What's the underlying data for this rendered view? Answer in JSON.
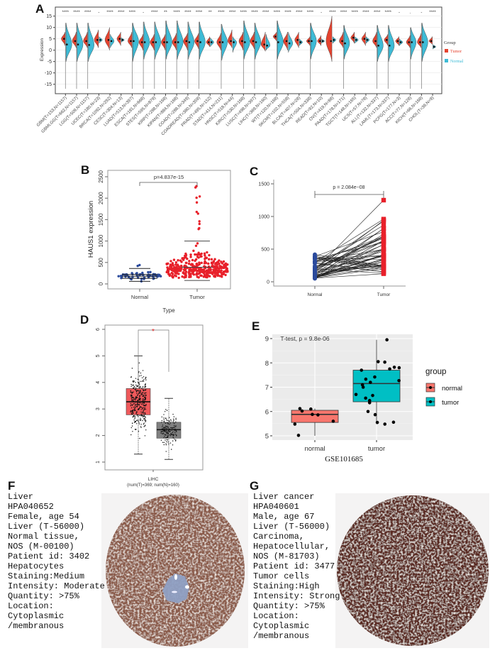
{
  "panel_letters": [
    "A",
    "B",
    "C",
    "D",
    "E",
    "F",
    "G"
  ],
  "chart_data": [
    {
      "panel": "A",
      "type": "violin",
      "ylabel": "Expression",
      "ylim": [
        -17,
        17
      ],
      "yticks": [
        15,
        10,
        5,
        0,
        -5,
        -10,
        -15
      ],
      "grid": true,
      "legend": {
        "title": "Group",
        "placement": "right",
        "entries": [
          {
            "name": "Tumor",
            "color": "#e5432f"
          },
          {
            "name": "Normal",
            "color": "#3dbbd6"
          }
        ]
      },
      "fields": [
        "label",
        "significance",
        "tumor_median",
        "tumor_min",
        "tumor_max",
        "normal_median",
        "normal_min",
        "normal_max"
      ],
      "categories": [
        [
          "GBM(T=153,N=1157)",
          "****",
          5,
          2,
          8,
          2.5,
          -5,
          12
        ],
        [
          "GBMLGG(T=662,N=1157)",
          "****",
          4,
          1,
          8,
          2.5,
          -5,
          12
        ],
        [
          "LGG(T=509,N=1157)",
          "****",
          4,
          1,
          8,
          2.3,
          -5,
          12
        ],
        [
          "UCEC(T=180,N=23)",
          "-",
          4.5,
          1,
          9,
          4.5,
          3,
          6
        ],
        [
          "BRCA(T=1092,N=292)",
          "****",
          4.5,
          0,
          10,
          4,
          1,
          7
        ],
        [
          "CESC(T=304,N=13)",
          "****",
          5,
          2,
          8,
          4.5,
          3.5,
          5.5
        ],
        [
          "LUAD(T=513,N=397)",
          "****",
          4,
          1,
          8,
          4,
          -5,
          12
        ],
        [
          "ESCA(T=181,N=668)",
          "-",
          3.5,
          0,
          7,
          3.5,
          -4,
          12.5
        ],
        [
          "STES(T=595,N=879)",
          "****",
          3.5,
          0,
          7,
          3.5,
          -4,
          12.5
        ],
        [
          "KIRP(T=288,N=168)",
          "**",
          3.5,
          0,
          7,
          3.5,
          -4,
          13
        ],
        [
          "KIPAN(T=884,N=168)",
          "****",
          3.5,
          0,
          7.5,
          3.5,
          -4,
          13
        ],
        [
          "COAD(T=288,N=349)",
          "****",
          4,
          0,
          7.5,
          3.5,
          -4,
          12.5
        ],
        [
          "COADREAD(T=380,N=359)",
          "****",
          4,
          0.5,
          7.5,
          3.5,
          -4,
          12.5
        ],
        [
          "PRAD(T=495,N=152)",
          "**",
          3.5,
          1.5,
          6,
          3.5,
          1.5,
          5.5
        ],
        [
          "STAD(T=414,N=211)",
          "****",
          3.5,
          0,
          7.5,
          3.5,
          -4.5,
          11.5
        ],
        [
          "HNSC(T=518,N=44)",
          "****",
          4,
          1,
          9,
          3.5,
          -1,
          6
        ],
        [
          "KIRC(T=530,N=168)",
          "****",
          4,
          0,
          8,
          3.5,
          -4,
          13
        ],
        [
          "LUSC(T=498,N=397)",
          "****",
          4,
          0.5,
          8,
          3.5,
          -4,
          12
        ],
        [
          "LIHC(T=369,N=160)",
          "****",
          2.5,
          -0.5,
          8,
          2,
          0,
          7
        ],
        [
          "WT(T=120,N=168)",
          "****",
          6,
          4,
          8,
          3.5,
          -4,
          13
        ],
        [
          "SKCM(T=102,N=558)",
          "****",
          4,
          0,
          8,
          3,
          -1,
          8
        ],
        [
          "BLCA(T=407,N=28)",
          "****",
          4.5,
          1,
          8,
          3.5,
          2,
          5
        ],
        [
          "THCA(T=504,N=338)",
          "****",
          4,
          2,
          6,
          4,
          -4,
          12
        ],
        [
          "READ(T=92,N=10)",
          "-",
          4,
          2,
          6.5,
          4,
          3,
          5
        ],
        [
          "OV(T=419,N=88)",
          "****",
          4,
          -5,
          15,
          4.5,
          3,
          6
        ],
        [
          "PAAD(T=178,N=171)",
          "****",
          4,
          1,
          8,
          3,
          -4,
          11
        ],
        [
          "TGCT(T=148,N=165)",
          "****",
          5.5,
          3,
          8,
          4.5,
          3,
          6
        ],
        [
          "UCS(T=57,N=78)",
          "****",
          5,
          2,
          8,
          4.5,
          3,
          6
        ],
        [
          "ALL(T=132,N=337)",
          "****",
          4,
          1,
          8,
          2,
          -5,
          11
        ],
        [
          "LAML(T=173,N=337)",
          "****",
          4.5,
          2,
          7,
          2,
          -5,
          11
        ],
        [
          "PCPG(T=177,N=3)",
          "-",
          4,
          2,
          6,
          3.5,
          2,
          5
        ],
        [
          "ACC(T=77,N=128)",
          ".",
          3.5,
          1,
          6.5,
          3.5,
          -4,
          10
        ],
        [
          "KICH(T=66,N=168)",
          "-",
          3.5,
          1,
          7.5,
          3.5,
          -5,
          12
        ],
        [
          "CHOL(T=36,N=9)",
          "****",
          4,
          2.5,
          6,
          1.5,
          0.5,
          2.5
        ]
      ]
    },
    {
      "panel": "B",
      "type": "beeswarm",
      "ylabel": "HAUS1 expression",
      "xlabel": "Type",
      "categories": [
        "Normal",
        "Tumor"
      ],
      "ylim": [
        0,
        2500
      ],
      "yticks": [
        0,
        500,
        1000,
        1500,
        2000,
        2500
      ],
      "pvalue": "p=4.837e-15",
      "colors": [
        "#2a4a9c",
        "#e8202a"
      ],
      "summary": {
        "Normal": {
          "min": 60,
          "q1": 130,
          "median": 180,
          "q3": 220,
          "max": 360,
          "outliers": [
            420,
            440
          ]
        },
        "Tumor": {
          "min": 80,
          "median": 390,
          "max": 1000,
          "top_points": [
            2280,
            2250,
            2040,
            2010,
            1900,
            1680,
            1640,
            1460,
            1400,
            1300,
            1280
          ]
        }
      }
    },
    {
      "panel": "C",
      "type": "paired-line",
      "categories": [
        "Normal",
        "Tumor"
      ],
      "ylim": [
        0,
        1500
      ],
      "yticks": [
        0,
        500,
        1000,
        1500
      ],
      "pvalue": "p = 2.084e−08",
      "colors": [
        "#2a4a9c",
        "#e8202a"
      ],
      "ranges": {
        "Normal": [
          50,
          430
        ],
        "Tumor": [
          100,
          1250
        ]
      }
    },
    {
      "panel": "D",
      "type": "box-jitter",
      "ylim": [
        0.8,
        6.2
      ],
      "yticks": [
        1,
        2,
        3,
        4,
        5,
        6
      ],
      "xlabel": "LIHC",
      "xsublabel": "(num(T)=369; num(N)=160)",
      "significance": "*",
      "boxes": [
        {
          "group": "Tumor",
          "color": "#f0595b",
          "whisker_low": 1.3,
          "q1": 2.78,
          "median": 3.27,
          "q3": 3.77,
          "whisker_high": 5.0
        },
        {
          "group": "Normal",
          "color": "#808080",
          "whisker_low": 1.1,
          "q1": 1.9,
          "median": 2.22,
          "q3": 2.5,
          "whisker_high": 3.4
        }
      ]
    },
    {
      "panel": "E",
      "type": "box-jitter",
      "title": "T-test, p = 9.8e-06",
      "xlabel": "GSE101685",
      "categories": [
        "normal",
        "tumor"
      ],
      "ylim": [
        4.85,
        9.15
      ],
      "yticks": [
        5,
        6,
        7,
        8,
        9
      ],
      "legend": {
        "title": "group",
        "placement": "right",
        "entries": [
          {
            "name": "normal",
            "color": "#f8766d"
          },
          {
            "name": "tumor",
            "color": "#00bfc4"
          }
        ]
      },
      "boxes": [
        {
          "group": "normal",
          "whisker_low": 5.0,
          "q1": 5.55,
          "median": 5.88,
          "q3": 6.05,
          "whisker_high": 6.12
        },
        {
          "group": "tumor",
          "whisker_low": 5.48,
          "q1": 6.4,
          "median": 7.15,
          "q3": 7.7,
          "whisker_high": 8.95
        }
      ],
      "points": {
        "normal": [
          6.12,
          6.1,
          6.02,
          5.88,
          5.86,
          5.6,
          5.48,
          5.02
        ],
        "tumor": [
          8.95,
          8.05,
          8.03,
          7.82,
          7.8,
          7.75,
          7.7,
          7.42,
          7.33,
          7.27,
          7.2,
          7.1,
          7.0,
          6.7,
          6.66,
          6.55,
          6.45,
          6.36,
          6.0,
          5.87,
          5.56,
          5.55,
          5.48
        ]
      }
    }
  ],
  "ihc": {
    "F": {
      "lines": [
        "Liver",
        "HPA040652",
        "Female, age 54",
        "Liver (T-56000)",
        "Normal tissue,",
        "NOS (M-00100)",
        "Patient id: 3402",
        "Hepatocytes",
        "Staining:Medium",
        "Intensity: Moderate",
        "Quantity: >75%",
        "Location:",
        "Cytoplasmic",
        "/membranous"
      ],
      "stain_color": "#8a5a48"
    },
    "G": {
      "lines": [
        "Liver cancer",
        "HPA040601",
        "Male, age 67",
        "Liver (T-56000)",
        "Carcinoma,",
        "Hepatocellular,",
        "NOS (M-81703)",
        "Patient id: 3477",
        "Tumor cells",
        "Staining:High",
        "Intensity: Strong",
        "Quantity: >75%",
        "Location:",
        "Cytoplasmic",
        "/membranous"
      ],
      "stain_color": "#5a2c20"
    }
  }
}
